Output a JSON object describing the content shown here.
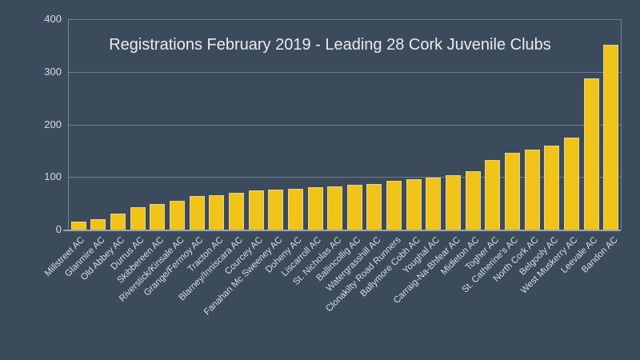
{
  "chart_data": {
    "type": "bar",
    "title": "Registrations February 2019 - Leading 28 Cork Juvenile Clubs",
    "categories": [
      "Millstreet AC",
      "Glanmire AC",
      "Old Abbey AC",
      "Durrus AC",
      "Skibbereen AC",
      "Riverstick/Kinsale AC",
      "Grange/Fermoy AC",
      "Tracton AC",
      "Blarney/Inniscara AC",
      "Courcey AC",
      "Fanahan Mc Sweeney AC",
      "Doheny AC",
      "Liscarroll AC",
      "St. Nicholas AC",
      "Ballincollig AC",
      "Watergrasshill AC",
      "Clonakilty Road Runners",
      "Ballymore Cobh AC",
      "Youghal AC",
      "Carraig-Na-Bhfear AC",
      "Midleton AC",
      "Togher AC",
      "St. Catherine's AC",
      "North Cork AC",
      "Belgooly AC",
      "West Muskerry AC",
      "Leevale AC",
      "Bandon AC"
    ],
    "values": [
      15,
      20,
      31,
      43,
      48,
      54,
      64,
      65,
      70,
      74,
      76,
      78,
      81,
      82,
      85,
      86,
      93,
      96,
      99,
      104,
      111,
      133,
      146,
      152,
      159,
      175,
      287,
      351
    ],
    "xlabel": "",
    "ylabel": "",
    "ylim": [
      0,
      400
    ],
    "yticks": [
      0,
      100,
      200,
      300,
      400
    ],
    "grid": "horizontal",
    "legend_position": "none",
    "colors": {
      "background": "#3c4b5c",
      "bar_fill": "#f0c419",
      "bar_border": "rgba(224,224,224,0.6)",
      "gridline": "rgba(255,255,255,0.28)",
      "axis_line": "rgba(255,255,255,0.5)",
      "tick_text": "#d7dbde",
      "title_text": "#e9ebed"
    }
  }
}
